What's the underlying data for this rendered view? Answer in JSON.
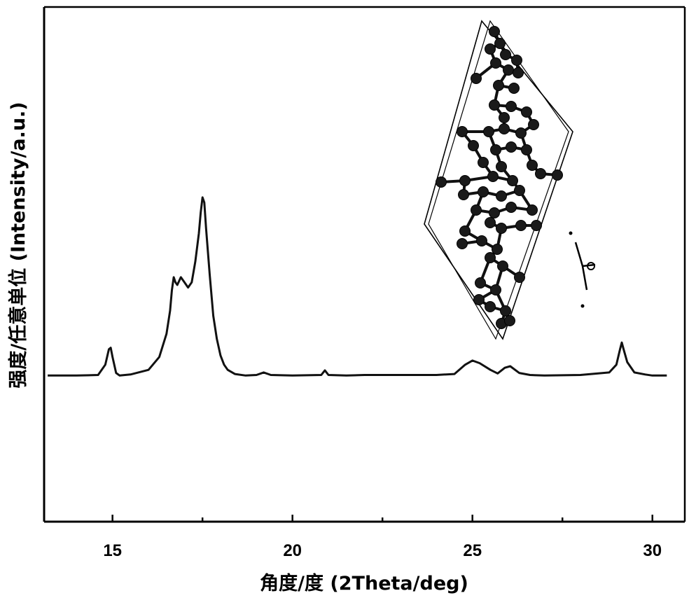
{
  "chart_data": {
    "type": "line",
    "xlabel": "角度/度 (2Theta/deg)",
    "ylabel": "强度/任意单位 (Intensity/a.u.)",
    "xlim": [
      13.1,
      30.9
    ],
    "ylim": [
      0,
      100
    ],
    "xticks": [
      15,
      20,
      25,
      30
    ],
    "xtick_labels": [
      "15",
      "20",
      "25",
      "30"
    ],
    "yticks_visible": false,
    "grid": false,
    "legend": "none",
    "line_color": "#111111",
    "series": [
      {
        "x": [
          13.2,
          14.0,
          14.6,
          14.8,
          14.9,
          14.95,
          15.0,
          15.1,
          15.2,
          15.5,
          16.0,
          16.3,
          16.5,
          16.6,
          16.65,
          16.7,
          16.75,
          16.8,
          16.9,
          17.0,
          17.1,
          17.2,
          17.3,
          17.4,
          17.45,
          17.5,
          17.55,
          17.6,
          17.7,
          17.8,
          17.9,
          18.0,
          18.1,
          18.2,
          18.4,
          18.7,
          19.0,
          19.2,
          19.4,
          20.0,
          20.8,
          20.9,
          21.0,
          21.5,
          22.0,
          23.0,
          24.0,
          24.5,
          24.8,
          25.0,
          25.2,
          25.5,
          25.7,
          25.9,
          26.05,
          26.3,
          26.6,
          27.0,
          28.0,
          28.8,
          29.0,
          29.1,
          29.15,
          29.2,
          29.3,
          29.5,
          29.8,
          30.0,
          30.4
        ],
        "y": [
          28.4,
          28.4,
          28.5,
          30.5,
          33.5,
          33.8,
          32.0,
          28.9,
          28.4,
          28.6,
          29.5,
          32.0,
          36.5,
          41.0,
          45.0,
          47.5,
          46.5,
          46.0,
          47.5,
          46.5,
          45.5,
          46.5,
          50.5,
          56.0,
          60.0,
          63.0,
          62.0,
          57.0,
          48.0,
          40.0,
          35.5,
          32.3,
          30.5,
          29.5,
          28.7,
          28.4,
          28.5,
          29.0,
          28.5,
          28.4,
          28.5,
          29.4,
          28.5,
          28.4,
          28.5,
          28.5,
          28.5,
          28.7,
          30.5,
          31.3,
          30.8,
          29.5,
          28.8,
          29.9,
          30.2,
          28.9,
          28.5,
          28.4,
          28.5,
          29.0,
          30.5,
          33.5,
          34.8,
          33.5,
          31.0,
          29.0,
          28.6,
          28.4,
          28.4
        ]
      }
    ]
  }
}
